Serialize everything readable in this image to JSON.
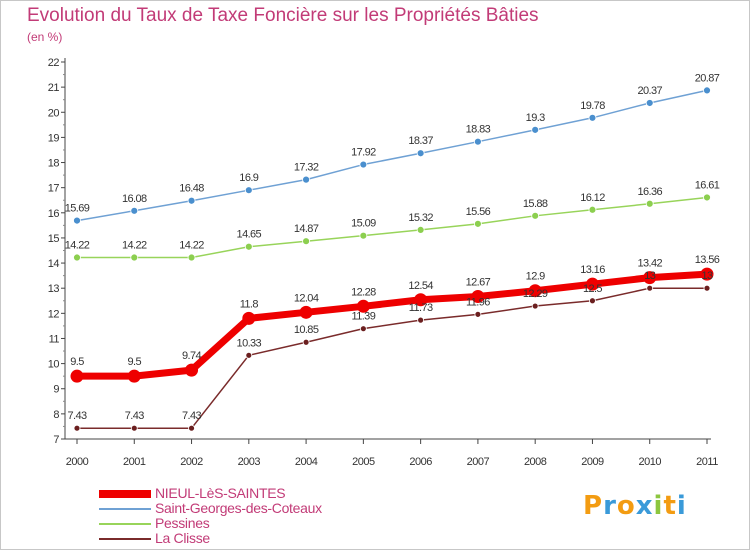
{
  "title": "Evolution du Taux de Taxe Foncière sur les Propriétés Bâties",
  "subtitle": "(en %)",
  "logo": {
    "text": "Proxiti",
    "letters": [
      "P",
      "r",
      "o",
      "x",
      "i",
      "t",
      "i"
    ],
    "colors": [
      "#f39c12",
      "#3a9ad9",
      "#f39c12",
      "#3a9ad9",
      "#8cc63f",
      "#f39c12",
      "#3a9ad9"
    ]
  },
  "chart_data": {
    "type": "line",
    "x": [
      "2000",
      "2001",
      "2002",
      "2003",
      "2004",
      "2005",
      "2006",
      "2007",
      "2008",
      "2009",
      "2010",
      "2011"
    ],
    "ylim": [
      7,
      22
    ],
    "yticks": [
      "7",
      "8",
      "9",
      "10",
      "11",
      "12",
      "13",
      "14",
      "15",
      "16",
      "17",
      "18",
      "19",
      "20",
      "21",
      "22"
    ],
    "grid": false,
    "legend_position": "bottom-left",
    "series": [
      {
        "name": "NIEUL-LèS-SAINTES",
        "color": "#ee0000",
        "marker": "#ee0000",
        "width": 7,
        "radius": 6.5,
        "values": [
          9.5,
          9.5,
          9.74,
          11.8,
          12.04,
          12.28,
          12.54,
          12.67,
          12.9,
          13.16,
          13.42,
          13.56
        ],
        "labels": [
          "9.5",
          "9.5",
          "9.74",
          "11.8",
          "12.04",
          "12.28",
          "12.54",
          "12.67",
          "12.9",
          "13.16",
          "13.42",
          "13.56"
        ]
      },
      {
        "name": "Saint-Georges-des-Coteaux",
        "color": "#6fa1d4",
        "marker": "#4a8fce",
        "width": 1.5,
        "radius": 3.5,
        "values": [
          15.69,
          16.08,
          16.48,
          16.9,
          17.32,
          17.92,
          18.37,
          18.83,
          19.3,
          19.78,
          20.37,
          20.87
        ],
        "labels": [
          "15.69",
          "16.08",
          "16.48",
          "16.9",
          "17.32",
          "17.92",
          "18.37",
          "18.83",
          "19.3",
          "19.78",
          "20.37",
          "20.87"
        ]
      },
      {
        "name": "Pessines",
        "color": "#98d45a",
        "marker": "#8ccf4f",
        "width": 1.5,
        "radius": 3.5,
        "values": [
          14.22,
          14.22,
          14.22,
          14.65,
          14.87,
          15.09,
          15.32,
          15.56,
          15.88,
          16.12,
          16.36,
          16.61
        ],
        "labels": [
          "14.22",
          "14.22",
          "14.22",
          "14.65",
          "14.87",
          "15.09",
          "15.32",
          "15.56",
          "15.88",
          "16.12",
          "16.36",
          "16.61"
        ]
      },
      {
        "name": "La Clisse",
        "color": "#7a2b2b",
        "marker": "#6b1f1f",
        "width": 1.5,
        "radius": 3,
        "values": [
          7.43,
          7.43,
          7.43,
          10.33,
          10.85,
          11.39,
          11.73,
          11.96,
          12.29,
          12.5,
          13,
          13
        ],
        "labels": [
          "7.43",
          "7.43",
          "7.43",
          "10.33",
          "10.85",
          "11.39",
          "11.73",
          "11.96",
          "12.29",
          "12.5",
          "13",
          "13"
        ]
      }
    ]
  }
}
